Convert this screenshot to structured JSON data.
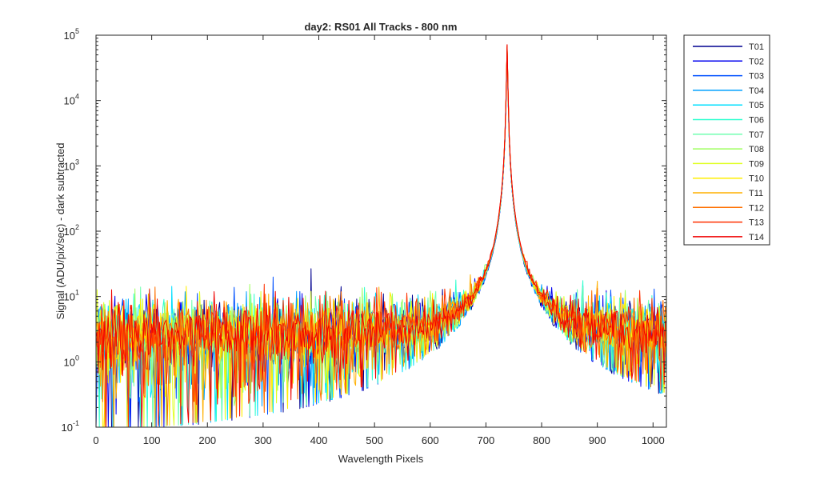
{
  "chart_data": {
    "type": "line",
    "title": "day2: RS01  All Tracks - 800 nm",
    "xlabel": "Wavelength Pixels",
    "ylabel": "Signal (ADU/pix/sec) - dark subtracted",
    "xlim": [
      0,
      1024
    ],
    "ylim": [
      0.1,
      100000
    ],
    "yscale": "log",
    "grid": false,
    "legend_position": "outside-top-right",
    "x_ticks": [
      0,
      100,
      200,
      300,
      400,
      500,
      600,
      700,
      800,
      900,
      1000
    ],
    "y_ticks": [
      {
        "value": 0.1,
        "base": "10",
        "exp": "-1"
      },
      {
        "value": 1,
        "base": "10",
        "exp": "0"
      },
      {
        "value": 10,
        "base": "10",
        "exp": "1"
      },
      {
        "value": 100,
        "base": "10",
        "exp": "2"
      },
      {
        "value": 1000,
        "base": "10",
        "exp": "3"
      },
      {
        "value": 10000,
        "base": "10",
        "exp": "4"
      },
      {
        "value": 100000,
        "base": "10",
        "exp": "5"
      }
    ],
    "peak": {
      "x": 738,
      "y": 60000
    },
    "noise_floor": {
      "median": 2.5,
      "range": [
        0.1,
        8
      ]
    },
    "series": [
      {
        "name": "T01",
        "color": "#00008F"
      },
      {
        "name": "T02",
        "color": "#0000EF"
      },
      {
        "name": "T03",
        "color": "#0050FF"
      },
      {
        "name": "T04",
        "color": "#00A0FF"
      },
      {
        "name": "T05",
        "color": "#00DFFF"
      },
      {
        "name": "T06",
        "color": "#30FFCF"
      },
      {
        "name": "T07",
        "color": "#70FFB0"
      },
      {
        "name": "T08",
        "color": "#9FFF60"
      },
      {
        "name": "T09",
        "color": "#DFFF20"
      },
      {
        "name": "T10",
        "color": "#FFEF00"
      },
      {
        "name": "T11",
        "color": "#FFB000"
      },
      {
        "name": "T12",
        "color": "#FF7000"
      },
      {
        "name": "T13",
        "color": "#FF3000"
      },
      {
        "name": "T14",
        "color": "#EF0000"
      }
    ]
  }
}
